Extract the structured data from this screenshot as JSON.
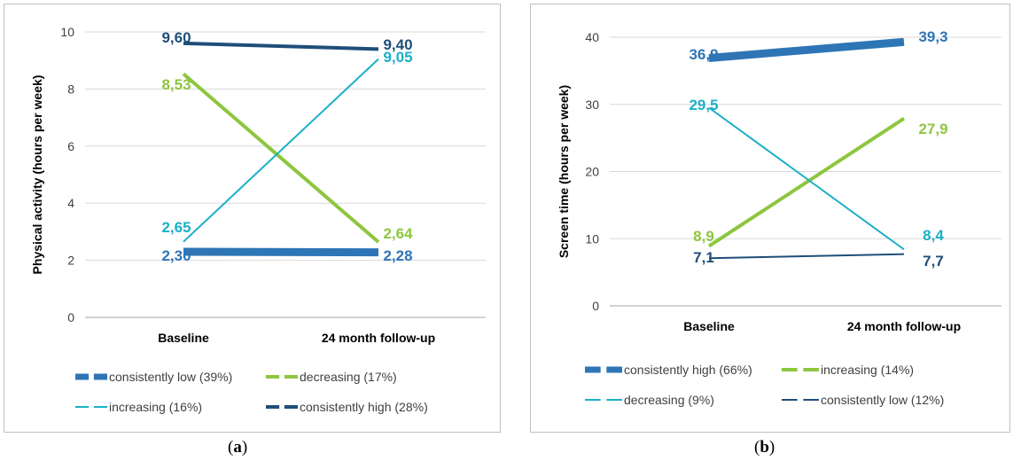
{
  "chart_data": [
    {
      "type": "line",
      "categories": [
        "Baseline",
        "24 month follow-up"
      ],
      "ylabel": "Physical activity (hours per week)",
      "ylim": [
        0,
        10
      ],
      "yticks": [
        "0",
        "2",
        "4",
        "6",
        "8",
        "10"
      ],
      "grid": true,
      "legend_position": "bottom",
      "series": [
        {
          "name": "consistently low (39%)",
          "values": [
            2.3,
            2.28
          ],
          "labels": [
            "2,30",
            "2,28"
          ],
          "color": "#2e75b6",
          "weight": "heavy"
        },
        {
          "name": "decreasing (17%)",
          "values": [
            8.53,
            2.64
          ],
          "labels": [
            "8,53",
            "2,64"
          ],
          "color": "#8dc63f",
          "weight": "medium"
        },
        {
          "name": "increasing (16%)",
          "values": [
            2.65,
            9.05
          ],
          "labels": [
            "2,65",
            "9,05"
          ],
          "color": "#1ab0c8",
          "weight": "light"
        },
        {
          "name": "consistently high (28%)",
          "values": [
            9.6,
            9.4
          ],
          "labels": [
            "9,60",
            "9,40"
          ],
          "color": "#1f4e79",
          "weight": "medium"
        }
      ]
    },
    {
      "type": "line",
      "categories": [
        "Baseline",
        "24 month follow-up"
      ],
      "ylabel": "Screen time (hours per week)",
      "ylim": [
        0,
        40
      ],
      "yticks": [
        "0",
        "10",
        "20",
        "30",
        "40"
      ],
      "grid": true,
      "legend_position": "bottom",
      "series": [
        {
          "name": "consistently high (66%)",
          "values": [
            36.9,
            39.3
          ],
          "labels": [
            "36,9",
            "39,3"
          ],
          "color": "#2e75b6",
          "weight": "heavy"
        },
        {
          "name": "increasing (14%)",
          "values": [
            8.9,
            27.9
          ],
          "labels": [
            "8,9",
            "27,9"
          ],
          "color": "#8dc63f",
          "weight": "medium"
        },
        {
          "name": "decreasing (9%)",
          "values": [
            29.5,
            8.4
          ],
          "labels": [
            "29,5",
            "8,4"
          ],
          "color": "#1ab0c8",
          "weight": "light"
        },
        {
          "name": "consistently low (12%)",
          "values": [
            7.1,
            7.7
          ],
          "labels": [
            "7,1",
            "7,7"
          ],
          "color": "#1f4e79",
          "weight": "light"
        }
      ]
    }
  ],
  "captions": [
    {
      "open": "(",
      "letter": "a",
      "close": ")"
    },
    {
      "open": "(",
      "letter": "b",
      "close": ")"
    }
  ]
}
